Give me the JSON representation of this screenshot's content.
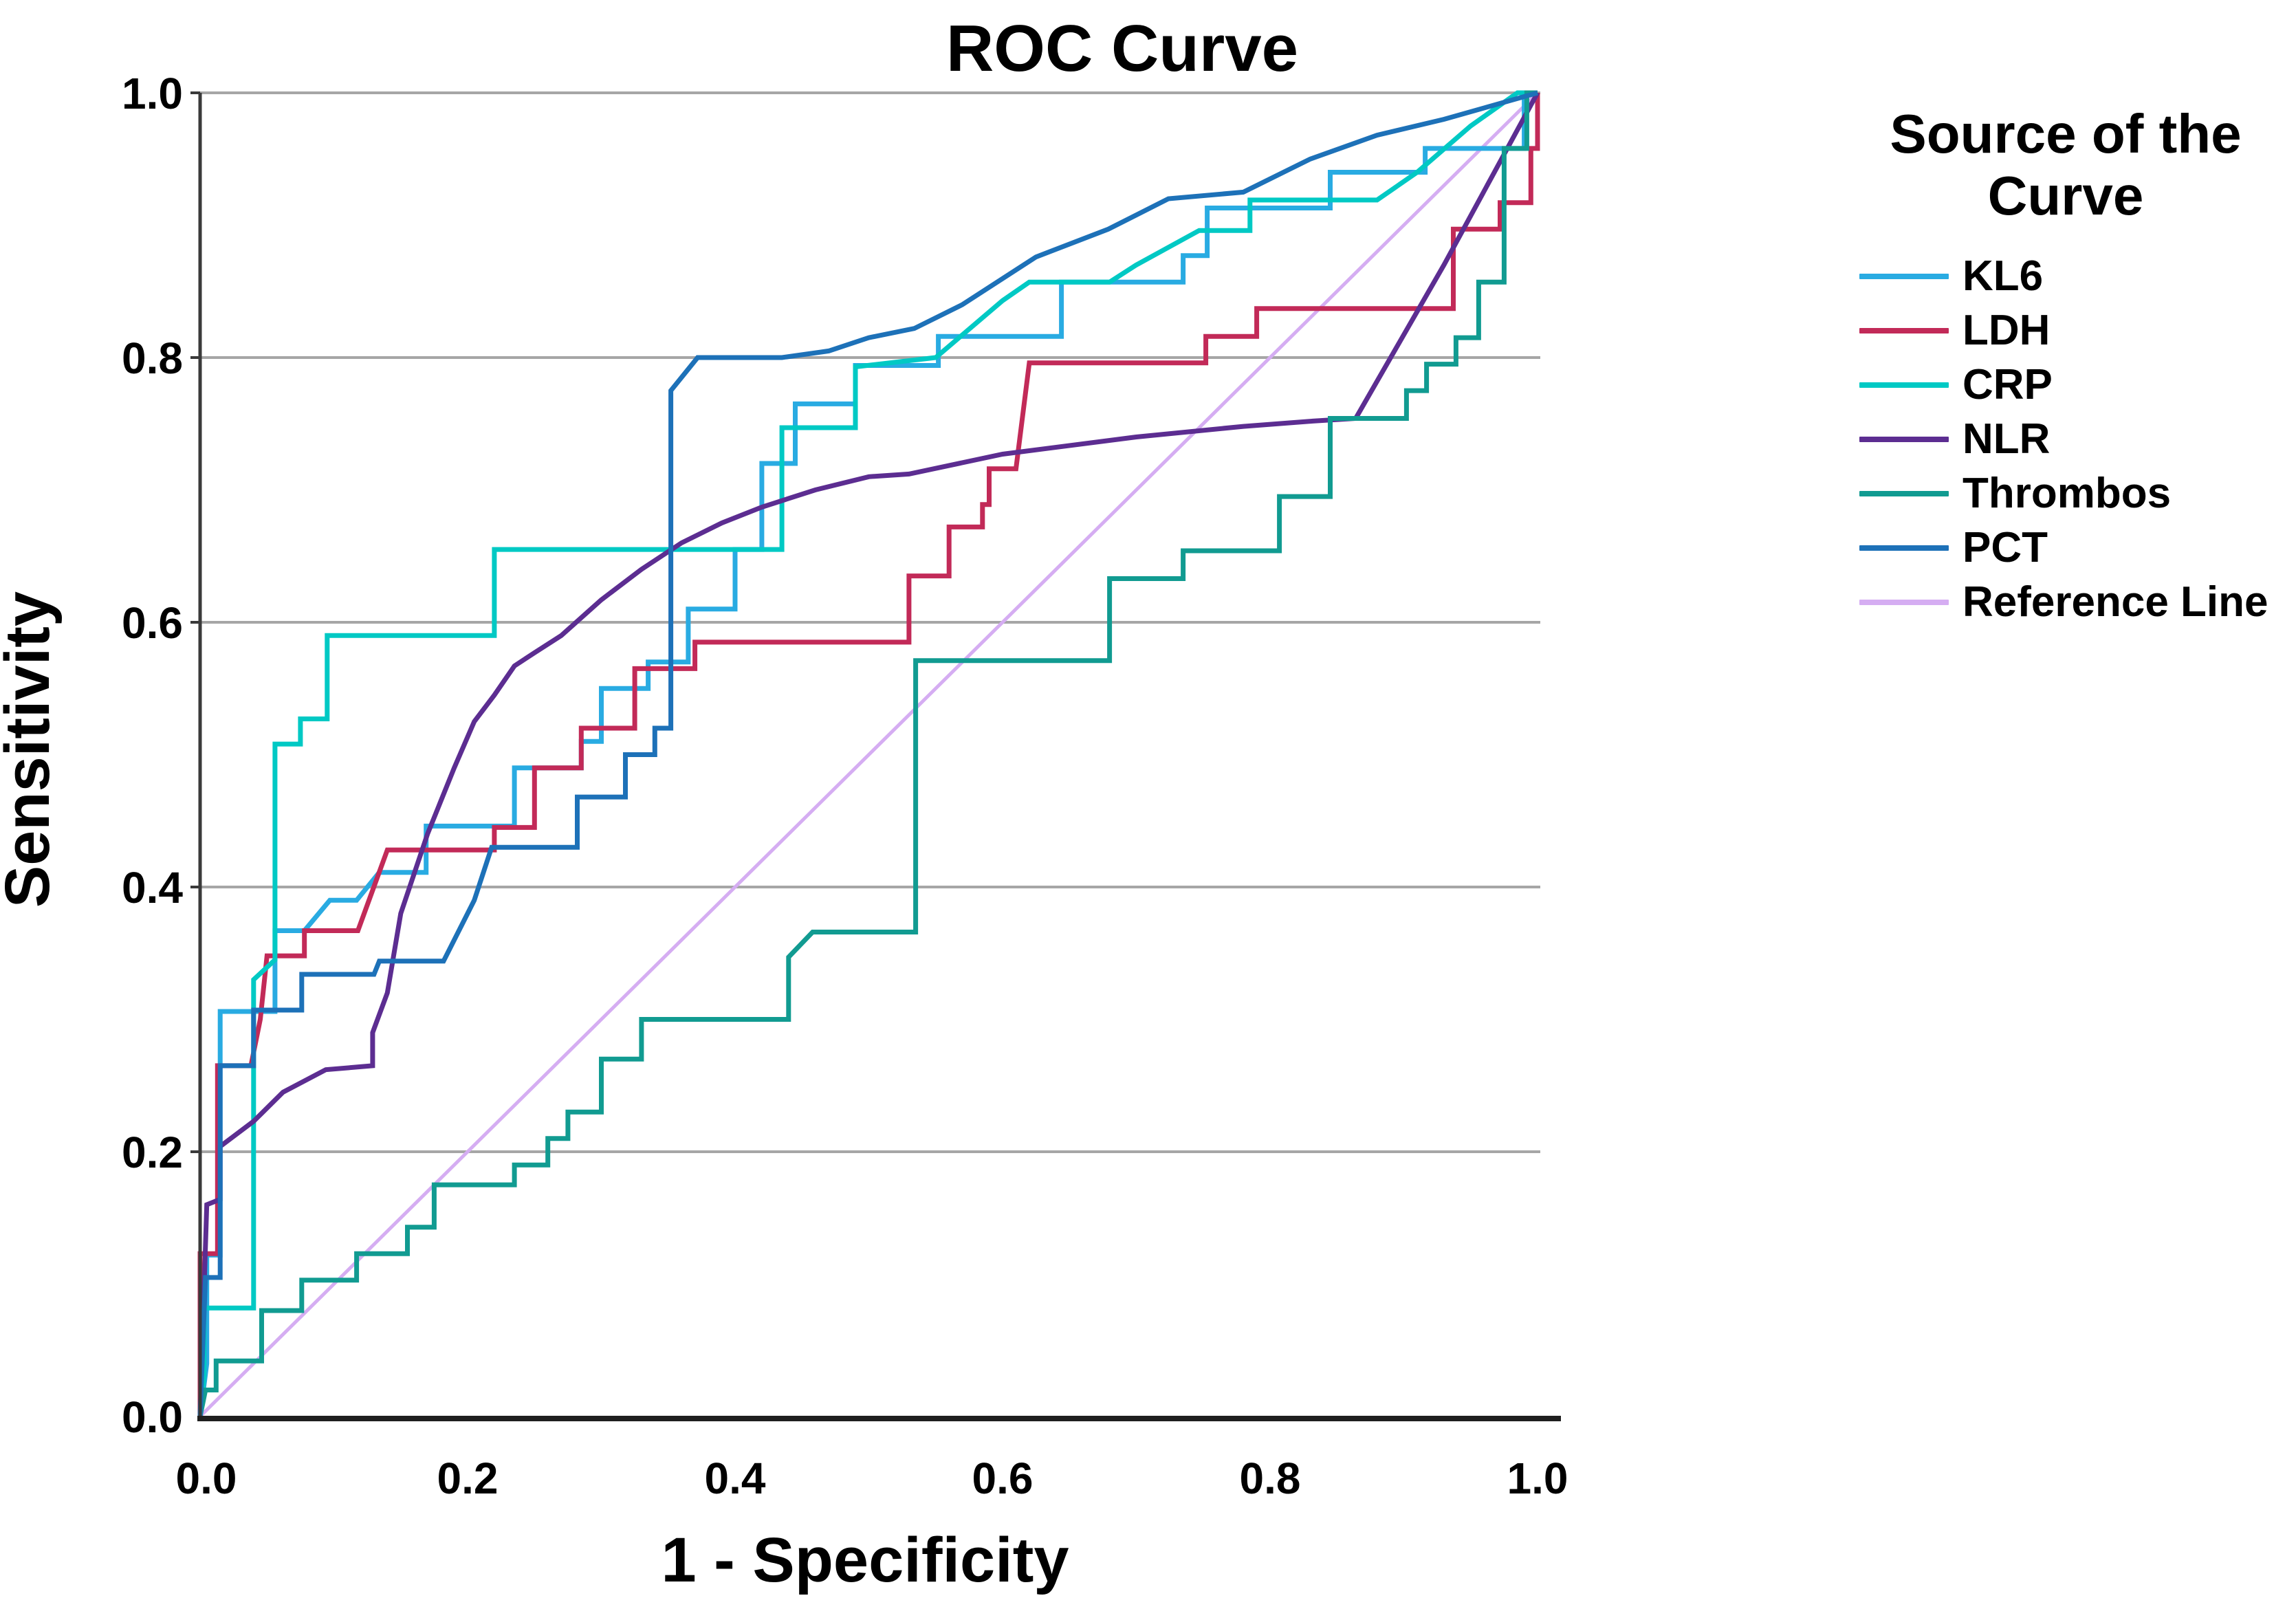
{
  "title": "ROC Curve",
  "axes": {
    "x": {
      "label": "1 - Specificity",
      "ticks": [
        "0.0",
        "0.2",
        "0.4",
        "0.6",
        "0.8",
        "1.0"
      ]
    },
    "y": {
      "label": "Sensitivity",
      "ticks": [
        "0.0",
        "0.2",
        "0.4",
        "0.6",
        "0.8",
        "1.0"
      ]
    }
  },
  "legend": {
    "title": "Source of the Curve",
    "items": [
      {
        "label": "KL6",
        "series": "KL6"
      },
      {
        "label": "LDH",
        "series": "LDH"
      },
      {
        "label": "CRP",
        "series": "CRP"
      },
      {
        "label": "NLR",
        "series": "NLR"
      },
      {
        "label": "Thrombos",
        "series": "Thrombos"
      },
      {
        "label": "PCT",
        "series": "PCT"
      },
      {
        "label": "Reference Line",
        "series": "Reference Line"
      }
    ]
  },
  "colors": {
    "grid": "#a6a6a6",
    "axis_left": "#3a3a3a",
    "axis_bottom": "#1f1f1f",
    "text": "#000000"
  },
  "chart_data": {
    "type": "line",
    "subtype": "roc-step-curves",
    "title": "ROC Curve",
    "xlabel": "1 - Specificity",
    "ylabel": "Sensitivity",
    "xlim": [
      0,
      1
    ],
    "ylim": [
      0,
      1
    ],
    "x_ticks": [
      0.0,
      0.2,
      0.4,
      0.6,
      0.8,
      1.0
    ],
    "y_ticks": [
      0.0,
      0.2,
      0.4,
      0.6,
      0.8,
      1.0
    ],
    "grid": "horizontal",
    "legend_position": "right",
    "series": [
      {
        "name": "Reference Line",
        "color": "#d5adf2",
        "width": 5,
        "points": [
          [
            0,
            0
          ],
          [
            1,
            1
          ]
        ]
      },
      {
        "name": "KL6",
        "color": "#29abe2",
        "width": 7,
        "points": [
          [
            0,
            0
          ],
          [
            0.005,
            0.04
          ],
          [
            0.005,
            0.122
          ],
          [
            0.015,
            0.122
          ],
          [
            0.015,
            0.306
          ],
          [
            0.056,
            0.306
          ],
          [
            0.056,
            0.367
          ],
          [
            0.078,
            0.367
          ],
          [
            0.097,
            0.39
          ],
          [
            0.117,
            0.39
          ],
          [
            0.134,
            0.411
          ],
          [
            0.169,
            0.411
          ],
          [
            0.169,
            0.446
          ],
          [
            0.235,
            0.446
          ],
          [
            0.235,
            0.49
          ],
          [
            0.285,
            0.49
          ],
          [
            0.285,
            0.51
          ],
          [
            0.3,
            0.51
          ],
          [
            0.3,
            0.55
          ],
          [
            0.335,
            0.55
          ],
          [
            0.335,
            0.57
          ],
          [
            0.365,
            0.57
          ],
          [
            0.365,
            0.61
          ],
          [
            0.4,
            0.61
          ],
          [
            0.4,
            0.655
          ],
          [
            0.42,
            0.655
          ],
          [
            0.42,
            0.72
          ],
          [
            0.445,
            0.72
          ],
          [
            0.445,
            0.765
          ],
          [
            0.49,
            0.765
          ],
          [
            0.49,
            0.794
          ],
          [
            0.552,
            0.794
          ],
          [
            0.552,
            0.816
          ],
          [
            0.644,
            0.816
          ],
          [
            0.644,
            0.857
          ],
          [
            0.735,
            0.857
          ],
          [
            0.735,
            0.877
          ],
          [
            0.753,
            0.877
          ],
          [
            0.753,
            0.913
          ],
          [
            0.845,
            0.913
          ],
          [
            0.845,
            0.94
          ],
          [
            0.916,
            0.94
          ],
          [
            0.916,
            0.958
          ],
          [
            0.99,
            0.958
          ],
          [
            0.99,
            1.0
          ],
          [
            1.0,
            1.0
          ]
        ]
      },
      {
        "name": "LDH",
        "color": "#c22a58",
        "width": 7,
        "points": [
          [
            0,
            0
          ],
          [
            0,
            0.123
          ],
          [
            0.013,
            0.123
          ],
          [
            0.013,
            0.265
          ],
          [
            0.038,
            0.265
          ],
          [
            0.045,
            0.3
          ],
          [
            0.05,
            0.348
          ],
          [
            0.078,
            0.348
          ],
          [
            0.078,
            0.367
          ],
          [
            0.118,
            0.367
          ],
          [
            0.14,
            0.428
          ],
          [
            0.22,
            0.428
          ],
          [
            0.22,
            0.445
          ],
          [
            0.25,
            0.445
          ],
          [
            0.25,
            0.49
          ],
          [
            0.285,
            0.49
          ],
          [
            0.285,
            0.52
          ],
          [
            0.325,
            0.52
          ],
          [
            0.325,
            0.565
          ],
          [
            0.37,
            0.565
          ],
          [
            0.37,
            0.585
          ],
          [
            0.475,
            0.585
          ],
          [
            0.53,
            0.585
          ],
          [
            0.53,
            0.635
          ],
          [
            0.56,
            0.635
          ],
          [
            0.56,
            0.672
          ],
          [
            0.585,
            0.672
          ],
          [
            0.585,
            0.689
          ],
          [
            0.59,
            0.689
          ],
          [
            0.59,
            0.716
          ],
          [
            0.61,
            0.716
          ],
          [
            0.62,
            0.796
          ],
          [
            0.752,
            0.796
          ],
          [
            0.752,
            0.816
          ],
          [
            0.79,
            0.816
          ],
          [
            0.79,
            0.837
          ],
          [
            0.937,
            0.837
          ],
          [
            0.937,
            0.897
          ],
          [
            0.972,
            0.897
          ],
          [
            0.972,
            0.917
          ],
          [
            0.995,
            0.917
          ],
          [
            0.995,
            0.958
          ],
          [
            1.0,
            0.958
          ],
          [
            1.0,
            1.0
          ]
        ]
      },
      {
        "name": "CRP",
        "color": "#00c9c4",
        "width": 7,
        "points": [
          [
            0,
            0
          ],
          [
            0.003,
            0.03
          ],
          [
            0.003,
            0.082
          ],
          [
            0.04,
            0.082
          ],
          [
            0.04,
            0.33
          ],
          [
            0.056,
            0.345
          ],
          [
            0.056,
            0.508
          ],
          [
            0.075,
            0.508
          ],
          [
            0.075,
            0.527
          ],
          [
            0.095,
            0.527
          ],
          [
            0.095,
            0.59
          ],
          [
            0.22,
            0.59
          ],
          [
            0.22,
            0.655
          ],
          [
            0.435,
            0.655
          ],
          [
            0.435,
            0.747
          ],
          [
            0.49,
            0.747
          ],
          [
            0.49,
            0.793
          ],
          [
            0.55,
            0.8
          ],
          [
            0.6,
            0.843
          ],
          [
            0.62,
            0.857
          ],
          [
            0.68,
            0.857
          ],
          [
            0.7,
            0.87
          ],
          [
            0.747,
            0.896
          ],
          [
            0.785,
            0.896
          ],
          [
            0.785,
            0.919
          ],
          [
            0.88,
            0.919
          ],
          [
            0.91,
            0.94
          ],
          [
            0.95,
            0.975
          ],
          [
            0.985,
            1.0
          ],
          [
            1.0,
            1.0
          ]
        ]
      },
      {
        "name": "NLR",
        "color": "#5c2d91",
        "width": 7,
        "points": [
          [
            0,
            0
          ],
          [
            0.005,
            0.16
          ],
          [
            0.015,
            0.164
          ],
          [
            0.015,
            0.204
          ],
          [
            0.04,
            0.223
          ],
          [
            0.062,
            0.245
          ],
          [
            0.094,
            0.262
          ],
          [
            0.129,
            0.265
          ],
          [
            0.129,
            0.29
          ],
          [
            0.14,
            0.32
          ],
          [
            0.15,
            0.38
          ],
          [
            0.17,
            0.44
          ],
          [
            0.19,
            0.49
          ],
          [
            0.205,
            0.525
          ],
          [
            0.22,
            0.545
          ],
          [
            0.235,
            0.567
          ],
          [
            0.25,
            0.577
          ],
          [
            0.27,
            0.59
          ],
          [
            0.3,
            0.617
          ],
          [
            0.33,
            0.64
          ],
          [
            0.36,
            0.66
          ],
          [
            0.39,
            0.675
          ],
          [
            0.42,
            0.687
          ],
          [
            0.46,
            0.7
          ],
          [
            0.5,
            0.71
          ],
          [
            0.53,
            0.712
          ],
          [
            0.6,
            0.727
          ],
          [
            0.7,
            0.74
          ],
          [
            0.78,
            0.748
          ],
          [
            0.832,
            0.752
          ],
          [
            0.864,
            0.754
          ],
          [
            0.93,
            0.87
          ],
          [
            1.0,
            1.0
          ]
        ]
      },
      {
        "name": "Thrombos",
        "color": "#119b91",
        "width": 7,
        "points": [
          [
            0,
            0
          ],
          [
            0.004,
            0.02
          ],
          [
            0.012,
            0.02
          ],
          [
            0.012,
            0.042
          ],
          [
            0.046,
            0.042
          ],
          [
            0.046,
            0.08
          ],
          [
            0.076,
            0.08
          ],
          [
            0.076,
            0.103
          ],
          [
            0.117,
            0.103
          ],
          [
            0.117,
            0.123
          ],
          [
            0.155,
            0.123
          ],
          [
            0.155,
            0.143
          ],
          [
            0.175,
            0.143
          ],
          [
            0.175,
            0.175
          ],
          [
            0.235,
            0.175
          ],
          [
            0.235,
            0.19
          ],
          [
            0.26,
            0.19
          ],
          [
            0.26,
            0.21
          ],
          [
            0.275,
            0.21
          ],
          [
            0.275,
            0.23
          ],
          [
            0.3,
            0.23
          ],
          [
            0.3,
            0.27
          ],
          [
            0.33,
            0.27
          ],
          [
            0.33,
            0.3
          ],
          [
            0.44,
            0.3
          ],
          [
            0.44,
            0.347
          ],
          [
            0.458,
            0.366
          ],
          [
            0.535,
            0.366
          ],
          [
            0.535,
            0.571
          ],
          [
            0.68,
            0.571
          ],
          [
            0.68,
            0.633
          ],
          [
            0.735,
            0.633
          ],
          [
            0.735,
            0.654
          ],
          [
            0.807,
            0.654
          ],
          [
            0.807,
            0.695
          ],
          [
            0.845,
            0.695
          ],
          [
            0.845,
            0.754
          ],
          [
            0.902,
            0.754
          ],
          [
            0.902,
            0.775
          ],
          [
            0.917,
            0.775
          ],
          [
            0.917,
            0.795
          ],
          [
            0.939,
            0.795
          ],
          [
            0.939,
            0.815
          ],
          [
            0.956,
            0.815
          ],
          [
            0.956,
            0.857
          ],
          [
            0.975,
            0.857
          ],
          [
            0.975,
            0.958
          ],
          [
            0.992,
            0.958
          ],
          [
            0.992,
            1.0
          ],
          [
            1.0,
            1.0
          ]
        ]
      },
      {
        "name": "PCT",
        "color": "#1d71b8",
        "width": 7,
        "points": [
          [
            0,
            0
          ],
          [
            0.004,
            0.105
          ],
          [
            0.015,
            0.105
          ],
          [
            0.015,
            0.265
          ],
          [
            0.04,
            0.265
          ],
          [
            0.04,
            0.307
          ],
          [
            0.076,
            0.307
          ],
          [
            0.076,
            0.334
          ],
          [
            0.13,
            0.334
          ],
          [
            0.134,
            0.344
          ],
          [
            0.182,
            0.344
          ],
          [
            0.205,
            0.39
          ],
          [
            0.218,
            0.43
          ],
          [
            0.282,
            0.43
          ],
          [
            0.282,
            0.468
          ],
          [
            0.318,
            0.468
          ],
          [
            0.318,
            0.5
          ],
          [
            0.34,
            0.5
          ],
          [
            0.34,
            0.52
          ],
          [
            0.352,
            0.52
          ],
          [
            0.352,
            0.775
          ],
          [
            0.372,
            0.8
          ],
          [
            0.435,
            0.8
          ],
          [
            0.47,
            0.805
          ],
          [
            0.5,
            0.815
          ],
          [
            0.534,
            0.822
          ],
          [
            0.57,
            0.84
          ],
          [
            0.625,
            0.876
          ],
          [
            0.679,
            0.897
          ],
          [
            0.724,
            0.92
          ],
          [
            0.78,
            0.925
          ],
          [
            0.83,
            0.95
          ],
          [
            0.88,
            0.968
          ],
          [
            0.93,
            0.98
          ],
          [
            1.0,
            1.0
          ]
        ]
      }
    ]
  }
}
